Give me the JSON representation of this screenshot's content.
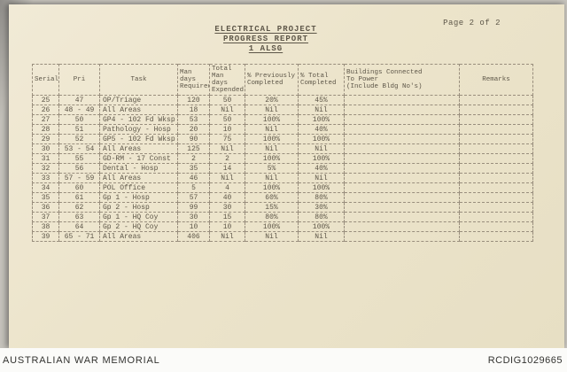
{
  "page_label": "Page 2 of 2",
  "title": {
    "line1": "ELECTRICAL PROJECT",
    "line2": "PROGRESS REPORT",
    "line3": "1 ALSG"
  },
  "table": {
    "headers": [
      "Serial",
      "Pri",
      "Task",
      "Man days\nRequired",
      "Total\nMan days\nExpended",
      "% Previously\nCompleted",
      "% Total\nCompleted",
      "Buildings Connected\nTo Power\n(Include Bldg No's)",
      "Remarks"
    ],
    "rows": [
      [
        "25",
        "47",
        "OP/Triage",
        "120",
        "50",
        "20%",
        "45%",
        "",
        ""
      ],
      [
        "26",
        "48 - 49",
        "All Areas",
        "18",
        "Nil",
        "Nil",
        "Nil",
        "",
        ""
      ],
      [
        "27",
        "50",
        "GP4 - 102 Fd Wksp",
        "53",
        "50",
        "100%",
        "100%",
        "",
        ""
      ],
      [
        "28",
        "51",
        "Pathology - Hosp",
        "20",
        "10",
        "Nil",
        "40%",
        "",
        ""
      ],
      [
        "29",
        "52",
        "GP5 - 102 Fd Wksp",
        "90",
        "75",
        "100%",
        "100%",
        "",
        ""
      ],
      [
        "30",
        "53 - 54",
        "All Areas",
        "125",
        "Nil",
        "Nil",
        "Nil",
        "",
        ""
      ],
      [
        "31",
        "55",
        "GD-RM - 17 Const",
        "2",
        "2",
        "100%",
        "100%",
        "",
        ""
      ],
      [
        "32",
        "56",
        "Dental - Hosp",
        "35",
        "14",
        "5%",
        "40%",
        "",
        ""
      ],
      [
        "33",
        "57 - 59",
        "All Areas",
        "46",
        "Nil",
        "Nil",
        "Nil",
        "",
        ""
      ],
      [
        "34",
        "60",
        "POL Office",
        "5",
        "4",
        "100%",
        "100%",
        "",
        ""
      ],
      [
        "35",
        "61",
        "Gp 1 - Hosp",
        "57",
        "40",
        "60%",
        "80%",
        "",
        ""
      ],
      [
        "36",
        "62",
        "Gp 2 - Hosp",
        "99",
        "30",
        "15%",
        "30%",
        "",
        ""
      ],
      [
        "37",
        "63",
        "Gp 1 - HQ Coy",
        "30",
        "15",
        "80%",
        "80%",
        "",
        ""
      ],
      [
        "38",
        "64",
        "Gp 2 - HQ Coy",
        "10",
        "10",
        "100%",
        "100%",
        "",
        ""
      ],
      [
        "39",
        "65 - 71",
        "All Areas",
        "406",
        "Nil",
        "Nil",
        "Nil",
        "",
        ""
      ]
    ]
  },
  "footer": {
    "archive_name": "AUSTRALIAN WAR MEMORIAL",
    "record_id": "RCDIG1029665"
  },
  "colors": {
    "paper": "#ece4cb",
    "ink": "#5d5648",
    "rule": "#998e7d",
    "background": "#c6c3bc",
    "footer_bg": "#fbfbf9"
  }
}
